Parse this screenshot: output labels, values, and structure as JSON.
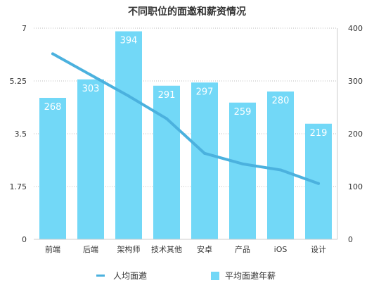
{
  "chart_data": {
    "type": "bar",
    "title": "不同职位的面邀和薪资情况",
    "categories": [
      "前端",
      "后端",
      "架构师",
      "技术其他",
      "安卓",
      "产品",
      "iOS",
      "设计"
    ],
    "series": [
      {
        "name": "人均面邀",
        "type": "line",
        "axis": "left",
        "values": [
          6.15,
          5.45,
          4.75,
          4.0,
          2.85,
          2.5,
          2.3,
          1.85
        ]
      },
      {
        "name": "平均面邀年薪",
        "type": "bar",
        "axis": "right",
        "values": [
          268,
          303,
          394,
          291,
          297,
          259,
          280,
          219
        ]
      }
    ],
    "y_left": {
      "ylim": [
        0,
        7
      ],
      "ticks": [
        "0",
        "1.75",
        "3.5",
        "5.25",
        "7"
      ]
    },
    "y_right": {
      "ylim": [
        0,
        400
      ],
      "ticks": [
        "0",
        "100",
        "200",
        "300",
        "400"
      ]
    },
    "grid": true,
    "legend_position": "bottom",
    "colors": {
      "bar": "#72d8f7",
      "line": "#4bb1de",
      "grid": "#bbbbbb",
      "axis": "#cccccc"
    }
  }
}
